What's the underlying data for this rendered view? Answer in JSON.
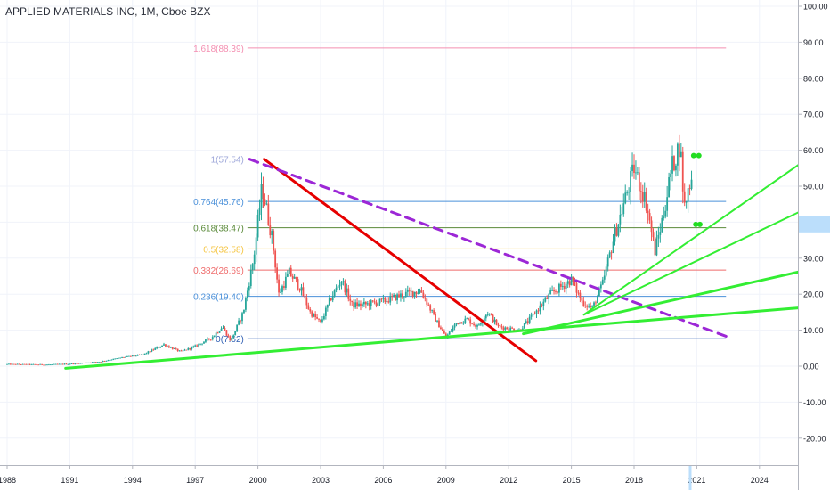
{
  "chart_data": {
    "type": "candlestick",
    "title": "APPLIED MATERIALS INC, 1M, Cboe BZX",
    "xlim": [
      1988,
      2026.5
    ],
    "ylim": [
      -30,
      102
    ],
    "x_ticks": [
      "1988",
      "1991",
      "1994",
      "1997",
      "2000",
      "2003",
      "2006",
      "2009",
      "2012",
      "2015",
      "2018",
      "2021",
      "2024"
    ],
    "y_ticks": [
      "100.00",
      "90.00",
      "80.00",
      "70.00",
      "60.00",
      "50.00",
      "40.00",
      "30.00",
      "20.00",
      "10.00",
      "0.00",
      "-10.00",
      "-20.00"
    ],
    "price_badge": "",
    "colors": {
      "up": "#26a69a",
      "down": "#ef5350"
    },
    "fib_levels": [
      {
        "label": "1.618(88.39)",
        "value": 88.39,
        "x_start": 1999.5,
        "color": "#f48fb1"
      },
      {
        "label": "1(57.54)",
        "value": 57.54,
        "x_start": 1999.5,
        "color": "#9fa8da"
      },
      {
        "label": "0.764(45.76)",
        "value": 45.76,
        "x_start": 1999.5,
        "color": "#4a90d9"
      },
      {
        "label": "0.618(38.47)",
        "value": 38.47,
        "x_start": 1999.5,
        "color": "#5a8a3a"
      },
      {
        "label": "0.5(32.58)",
        "value": 32.58,
        "x_start": 1999.5,
        "color": "#f5c542"
      },
      {
        "label": "0.382(26.69)",
        "value": 26.69,
        "x_start": 1999.5,
        "color": "#ef6b6b"
      },
      {
        "label": "0.236(19.40)",
        "value": 19.4,
        "x_start": 1999.5,
        "color": "#4a90d9"
      },
      {
        "label": "0(7.62)",
        "value": 7.62,
        "x_start": 1999.5,
        "color": "#2f5fb3"
      }
    ],
    "trendlines": [
      {
        "name": "red-downtrend",
        "color": "#e60000",
        "width": 3,
        "dash": "",
        "points": [
          [
            2000.3,
            57.5
          ],
          [
            2013.3,
            1.5
          ]
        ]
      },
      {
        "name": "purple-dashed-downtrend",
        "color": "#9c27d6",
        "width": 3,
        "dash": "10,7",
        "points": [
          [
            1999.6,
            57.5
          ],
          [
            2022.4,
            8.3
          ]
        ]
      },
      {
        "name": "green-support-1",
        "color": "#33ee33",
        "width": 3,
        "dash": "",
        "points": [
          [
            1990.8,
            -0.6
          ],
          [
            2026.5,
            16.5
          ]
        ]
      },
      {
        "name": "green-support-2",
        "color": "#33ee33",
        "width": 3,
        "dash": "",
        "points": [
          [
            2012.7,
            9.0
          ],
          [
            2026.5,
            27.0
          ]
        ]
      },
      {
        "name": "green-support-3",
        "color": "#33ee33",
        "width": 2,
        "dash": "",
        "points": [
          [
            2015.6,
            14.3
          ],
          [
            2026.5,
            44.5
          ]
        ]
      },
      {
        "name": "green-support-4",
        "color": "#33ee33",
        "width": 2,
        "dash": "",
        "points": [
          [
            2015.6,
            14.3
          ],
          [
            2026.5,
            58.5
          ]
        ]
      }
    ],
    "series": [
      {
        "type": "ohlc_anchors",
        "points": [
          [
            1988.0,
            0.5
          ],
          [
            1990.0,
            0.4
          ],
          [
            1991.0,
            0.6
          ],
          [
            1992.5,
            1.3
          ],
          [
            1993.5,
            2.4
          ],
          [
            1994.5,
            3.2
          ],
          [
            1995.5,
            6.0
          ],
          [
            1996.3,
            4.0
          ],
          [
            1997.0,
            5.5
          ],
          [
            1997.8,
            8.0
          ],
          [
            1998.3,
            11.0
          ],
          [
            1998.7,
            7.0
          ],
          [
            1999.3,
            15.0
          ],
          [
            1999.8,
            30.0
          ],
          [
            2000.2,
            50.0
          ],
          [
            2000.7,
            35.0
          ],
          [
            2001.0,
            20.0
          ],
          [
            2001.5,
            26.0
          ],
          [
            2002.0,
            22.0
          ],
          [
            2002.5,
            15.0
          ],
          [
            2003.0,
            12.0
          ],
          [
            2003.5,
            19.0
          ],
          [
            2004.0,
            24.0
          ],
          [
            2004.5,
            17.0
          ],
          [
            2005.0,
            17.0
          ],
          [
            2006.0,
            18.0
          ],
          [
            2007.0,
            20.0
          ],
          [
            2007.8,
            21.0
          ],
          [
            2008.5,
            13.0
          ],
          [
            2009.0,
            8.0
          ],
          [
            2009.5,
            12.0
          ],
          [
            2010.0,
            13.0
          ],
          [
            2010.5,
            11.0
          ],
          [
            2011.0,
            15.0
          ],
          [
            2011.5,
            11.0
          ],
          [
            2012.5,
            10.0
          ],
          [
            2013.0,
            13.0
          ],
          [
            2014.0,
            20.0
          ],
          [
            2014.5,
            22.0
          ],
          [
            2015.0,
            24.0
          ],
          [
            2015.5,
            18.0
          ],
          [
            2016.0,
            16.0
          ],
          [
            2016.5,
            23.0
          ],
          [
            2017.0,
            35.0
          ],
          [
            2017.5,
            45.0
          ],
          [
            2018.0,
            55.0
          ],
          [
            2018.3,
            50.0
          ],
          [
            2018.6,
            45.0
          ],
          [
            2019.0,
            32.0
          ],
          [
            2019.4,
            42.0
          ],
          [
            2019.8,
            55.0
          ],
          [
            2020.2,
            62.0
          ],
          [
            2020.4,
            44.0
          ],
          [
            2020.7,
            52.0
          ]
        ]
      }
    ],
    "markers": [
      {
        "x": 2020.85,
        "y": 58.5,
        "color": "#22dd22"
      },
      {
        "x": 2021.1,
        "y": 58.5,
        "color": "#22dd22"
      },
      {
        "x": 2020.95,
        "y": 39.4,
        "color": "#22dd22"
      },
      {
        "x": 2021.15,
        "y": 39.4,
        "color": "#22dd22"
      }
    ]
  }
}
